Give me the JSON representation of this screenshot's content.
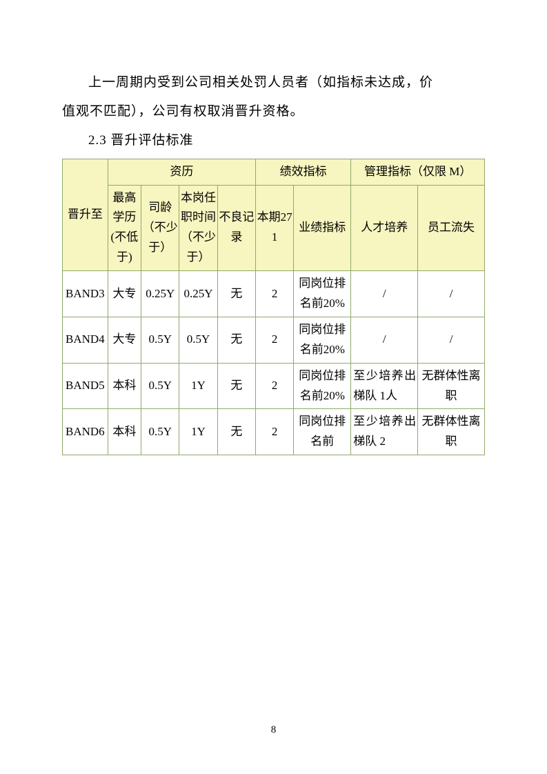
{
  "paragraph1_line1": "上一周期内受到公司相关处罚人员者（如指标未达成，价",
  "paragraph1_line2": "值观不匹配），公司有权取消晋升资格。",
  "section_heading": "2.3 晋升评估标准",
  "table": {
    "header_band": "晋升至",
    "group_qual": "资历",
    "group_perf": "绩效指标",
    "group_mgmt": "管理指标（仅限 M）",
    "col_edu": "最高学历(不低于)",
    "col_tenure": "司龄（不少于）",
    "col_postime": "本岗任职时间（不少于）",
    "col_bad": "不良记录",
    "col_271": "本期271",
    "col_perf": "业绩指标",
    "col_talent": "人才培养",
    "col_turnover": "员工流失",
    "rows": [
      {
        "band": "BAND3",
        "edu": "大专",
        "tenure": "0.25Y",
        "postime": "0.25Y",
        "bad": "无",
        "p271": "2",
        "perf": "同岗位排名前20%",
        "talent": "/",
        "turnover": "/"
      },
      {
        "band": "BAND4",
        "edu": "大专",
        "tenure": "0.5Y",
        "postime": "0.5Y",
        "bad": "无",
        "p271": "2",
        "perf": "同岗位排名前20%",
        "talent": "/",
        "turnover": "/"
      },
      {
        "band": "BAND5",
        "edu": "本科",
        "tenure": "0.5Y",
        "postime": "1Y",
        "bad": "无",
        "p271": "2",
        "perf": "同岗位排名前20%",
        "talent": "至少培养出梯队 1人",
        "turnover": "无群体性离职"
      },
      {
        "band": "BAND6",
        "edu": "本科",
        "tenure": "0.5Y",
        "postime": "1Y",
        "bad": "无",
        "p271": "2",
        "perf": "同岗位排名前",
        "talent": "至少培养出梯队 2",
        "turnover": "无群体性离职"
      }
    ]
  },
  "page_number": "8",
  "colors": {
    "header_bg": "#f7f5c0",
    "border": "#8fa868"
  }
}
